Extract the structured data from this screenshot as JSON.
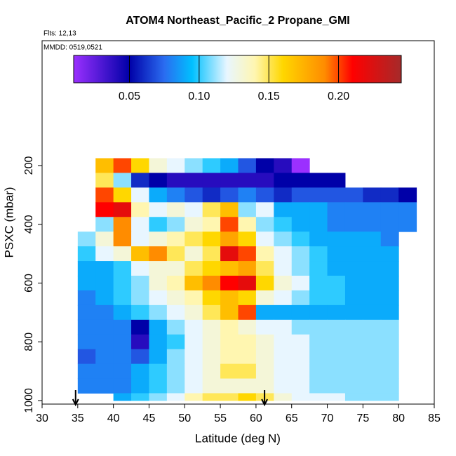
{
  "chart_data": {
    "type": "heatmap",
    "title": "ATOM4 Northeast_Pacific_2 Propane_GMI",
    "annotations": [
      "Flts: 12,13",
      "MMDD: 0519,0521"
    ],
    "xlabel": "Latitude (deg N)",
    "ylabel": "PSXC (mbar)",
    "xlim": [
      30,
      85
    ],
    "xticks": [
      30,
      35,
      40,
      45,
      50,
      55,
      60,
      65,
      70,
      75,
      80,
      85
    ],
    "ylim": [
      1012,
      -225
    ],
    "yticks": [
      200,
      400,
      600,
      800,
      1000
    ],
    "clim": [
      0.01,
      0.245
    ],
    "cticks": [
      {
        "value": 0.05,
        "label": "0.05"
      },
      {
        "value": 0.1,
        "label": "0.10"
      },
      {
        "value": 0.15,
        "label": "0.15"
      },
      {
        "value": 0.2,
        "label": "0.20"
      }
    ],
    "colorscale": [
      [
        0.01,
        "#9b30ff"
      ],
      [
        0.05,
        "#0000a8"
      ],
      [
        0.075,
        "#2a6cf0"
      ],
      [
        0.095,
        "#00c0ff"
      ],
      [
        0.12,
        "#e8f6ff"
      ],
      [
        0.14,
        "#fff6b0"
      ],
      [
        0.16,
        "#ffd700"
      ],
      [
        0.19,
        "#ff8c00"
      ],
      [
        0.21,
        "#ff0000"
      ],
      [
        0.245,
        "#a52a2a"
      ]
    ],
    "arrows_lat": [
      34.7,
      61.2
    ],
    "x": [
      35,
      37.5,
      40,
      42.5,
      45,
      47.5,
      50,
      52.5,
      55,
      57.5,
      60,
      62.5,
      65,
      67.5,
      70,
      72.5,
      75,
      77.5,
      80,
      82.5
    ],
    "y": [
      175,
      225,
      275,
      325,
      375,
      425,
      475,
      525,
      575,
      625,
      675,
      725,
      775,
      825,
      875,
      925,
      975,
      1000
    ],
    "values": [
      [
        null,
        0.17,
        0.2,
        0.16,
        0.13,
        0.12,
        0.11,
        0.1,
        0.09,
        0.07,
        0.05,
        0.04,
        0.01,
        null,
        null,
        null,
        null,
        null,
        null
      ],
      [
        null,
        0.15,
        0.11,
        0.06,
        0.05,
        0.04,
        0.04,
        0.04,
        0.04,
        0.04,
        0.04,
        0.05,
        0.05,
        0.05,
        0.05,
        null,
        null,
        null,
        null
      ],
      [
        null,
        0.2,
        0.16,
        0.12,
        0.09,
        0.08,
        0.07,
        0.06,
        0.07,
        0.08,
        0.07,
        0.06,
        0.07,
        0.07,
        0.07,
        0.07,
        0.06,
        0.06,
        0.05
      ],
      [
        null,
        0.21,
        0.22,
        0.14,
        0.12,
        0.13,
        0.12,
        0.15,
        0.17,
        0.11,
        0.12,
        0.09,
        0.09,
        0.09,
        0.08,
        0.08,
        0.08,
        0.08,
        0.08
      ],
      [
        null,
        0.11,
        0.19,
        0.12,
        0.1,
        0.11,
        0.13,
        0.14,
        0.2,
        0.14,
        0.11,
        0.1,
        0.09,
        0.09,
        0.08,
        0.08,
        0.08,
        0.08,
        0.08
      ],
      [
        0.11,
        0.13,
        0.19,
        0.12,
        0.13,
        0.14,
        0.15,
        0.16,
        0.18,
        0.16,
        0.12,
        0.11,
        0.1,
        0.09,
        0.09,
        0.09,
        0.09,
        0.08,
        null
      ],
      [
        0.1,
        0.12,
        0.13,
        0.17,
        0.19,
        0.15,
        0.13,
        0.15,
        0.22,
        0.2,
        0.14,
        0.12,
        0.11,
        0.1,
        0.09,
        0.09,
        0.09,
        0.09,
        null
      ],
      [
        0.09,
        0.09,
        0.1,
        0.12,
        0.13,
        0.13,
        0.15,
        0.16,
        0.17,
        0.18,
        0.15,
        0.12,
        0.11,
        0.1,
        0.09,
        0.09,
        0.09,
        0.09,
        null
      ],
      [
        0.09,
        0.09,
        0.1,
        0.11,
        0.13,
        0.14,
        0.17,
        0.19,
        0.21,
        0.22,
        0.16,
        0.13,
        0.12,
        0.1,
        0.1,
        0.09,
        0.09,
        0.09,
        null
      ],
      [
        0.08,
        0.09,
        0.1,
        0.11,
        0.12,
        0.13,
        0.14,
        0.16,
        0.17,
        0.16,
        0.13,
        0.12,
        0.11,
        0.1,
        0.1,
        0.09,
        0.09,
        0.09,
        null
      ],
      [
        0.08,
        0.08,
        0.09,
        0.1,
        0.11,
        0.12,
        0.13,
        0.15,
        0.17,
        0.2,
        0.09,
        0.09,
        0.09,
        0.09,
        0.09,
        0.09,
        0.09,
        0.09,
        null
      ],
      [
        0.08,
        0.08,
        0.08,
        0.05,
        0.09,
        0.11,
        0.12,
        0.13,
        0.14,
        0.13,
        0.12,
        0.12,
        0.11,
        0.11,
        0.11,
        0.11,
        0.11,
        0.11,
        null
      ],
      [
        0.08,
        0.08,
        0.08,
        0.04,
        0.09,
        0.1,
        0.12,
        0.13,
        0.14,
        0.14,
        0.13,
        0.12,
        0.12,
        0.11,
        0.11,
        0.11,
        0.11,
        0.11,
        null
      ],
      [
        0.07,
        0.08,
        0.08,
        0.07,
        0.09,
        0.11,
        0.12,
        0.13,
        0.14,
        0.14,
        0.13,
        0.12,
        0.12,
        0.11,
        0.11,
        0.11,
        0.11,
        0.11,
        null
      ],
      [
        0.08,
        0.08,
        0.08,
        0.09,
        0.1,
        0.11,
        0.12,
        0.13,
        0.15,
        0.15,
        0.13,
        0.12,
        0.12,
        0.11,
        0.11,
        0.11,
        0.11,
        0.11,
        null
      ],
      [
        0.08,
        0.08,
        0.08,
        0.09,
        0.1,
        0.11,
        0.12,
        0.13,
        0.13,
        0.13,
        0.13,
        0.12,
        0.12,
        0.11,
        0.11,
        0.11,
        0.11,
        0.11,
        null
      ],
      [
        null,
        null,
        0.09,
        0.1,
        0.11,
        0.12,
        0.14,
        0.15,
        0.15,
        0.16,
        0.15,
        0.13,
        0.12,
        0.12,
        0.12,
        0.11,
        0.11,
        0.11,
        null
      ]
    ]
  }
}
